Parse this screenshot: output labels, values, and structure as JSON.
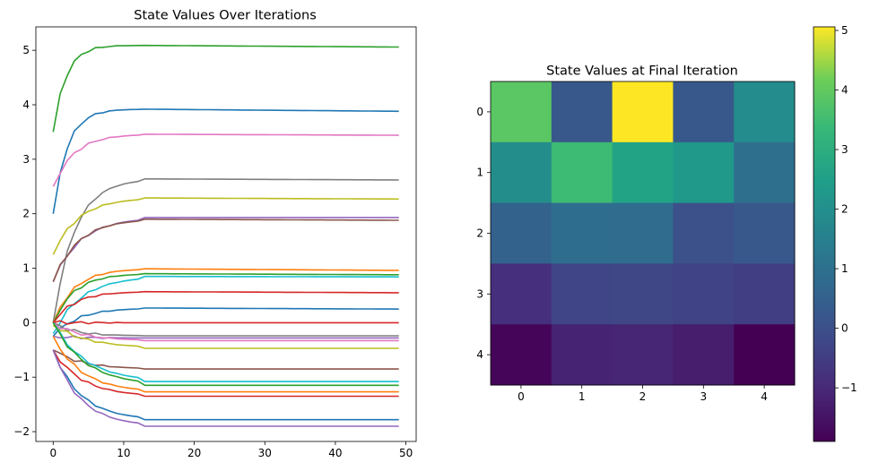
{
  "chart_data": [
    {
      "type": "line",
      "title": "State Values Over Iterations",
      "xlabel": "",
      "ylabel": "",
      "xlim": [
        -2.45,
        51.45
      ],
      "ylim": [
        -2.18,
        5.43
      ],
      "xticks": [
        0,
        10,
        20,
        30,
        40,
        50
      ],
      "yticks": [
        -2,
        -1,
        0,
        1,
        2,
        3,
        4,
        5
      ],
      "iterations": 50,
      "series": [
        {
          "color": "#2ca02c",
          "start": 3.5,
          "final": 5.06,
          "peak": 5.09,
          "tau": 1.8
        },
        {
          "color": "#1f77b4",
          "start": 2.0,
          "final": 3.88,
          "peak": 3.92,
          "tau": 2.0
        },
        {
          "color": "#e377c2",
          "start": 2.5,
          "final": 3.44,
          "peak": 3.46,
          "tau": 3.0
        },
        {
          "color": "#7f7f7f",
          "start": 0.0,
          "final": 2.62,
          "peak": 2.64,
          "tau": 3.0
        },
        {
          "color": "#bcbd22",
          "start": 1.25,
          "final": 2.27,
          "peak": 2.29,
          "tau": 3.5
        },
        {
          "color": "#9467bd",
          "start": 0.75,
          "final": 1.93,
          "peak": 1.93,
          "tau": 3.8
        },
        {
          "color": "#8c564b",
          "start": 0.75,
          "final": 1.88,
          "peak": 1.9,
          "tau": 3.5
        },
        {
          "color": "#ff7f0e",
          "start": 0.0,
          "final": 0.96,
          "peak": 0.99,
          "tau": 3.0
        },
        {
          "color": "#2ca02c",
          "start": 0.0,
          "final": 0.88,
          "peak": 0.9,
          "tau": 3.0
        },
        {
          "color": "#17becf",
          "start": -0.2,
          "final": 0.84,
          "peak": 0.85,
          "tau": 4.0
        },
        {
          "color": "#d62728",
          "start": 0.0,
          "final": 0.55,
          "peak": 0.57,
          "tau": 3.0
        },
        {
          "color": "#1f77b4",
          "start": -0.25,
          "final": 0.25,
          "peak": 0.27,
          "tau": 3.5
        },
        {
          "color": "#d62728",
          "start": 0.0,
          "final": 0.0,
          "peak": 0.0,
          "tau": 2.0
        },
        {
          "color": "#7f7f7f",
          "start": 0.0,
          "final": -0.24,
          "peak": -0.24,
          "tau": 3.0
        },
        {
          "color": "#9467bd",
          "start": -0.25,
          "final": -0.28,
          "peak": -0.28,
          "tau": 3.0
        },
        {
          "color": "#e377c2",
          "start": 0.0,
          "final": -0.33,
          "peak": -0.33,
          "tau": 4.0
        },
        {
          "color": "#bcbd22",
          "start": -0.05,
          "final": -0.47,
          "peak": -0.47,
          "tau": 5.0
        },
        {
          "color": "#8c564b",
          "start": -0.5,
          "final": -0.85,
          "peak": -0.85,
          "tau": 4.0
        },
        {
          "color": "#17becf",
          "start": 0.0,
          "final": -1.08,
          "peak": -1.08,
          "tau": 4.5
        },
        {
          "color": "#2ca02c",
          "start": 0.0,
          "final": -1.15,
          "peak": -1.15,
          "tau": 4.5
        },
        {
          "color": "#ff7f0e",
          "start": -0.25,
          "final": -1.27,
          "peak": -1.27,
          "tau": 4.0
        },
        {
          "color": "#d62728",
          "start": -0.5,
          "final": -1.35,
          "peak": -1.35,
          "tau": 4.0
        },
        {
          "color": "#1f77b4",
          "start": -0.5,
          "final": -1.78,
          "peak": -1.78,
          "tau": 3.8
        },
        {
          "color": "#9467bd",
          "start": -0.5,
          "final": -1.9,
          "peak": -1.9,
          "tau": 3.8
        }
      ]
    },
    {
      "type": "heatmap",
      "title": "State Values at Final Iteration",
      "colormap": "viridis",
      "xticks": [
        0,
        1,
        2,
        3,
        4
      ],
      "yticks": [
        0,
        1,
        2,
        3,
        4
      ],
      "values": [
        [
          3.88,
          0.25,
          5.06,
          0.25,
          1.88
        ],
        [
          1.93,
          3.44,
          2.62,
          2.27,
          0.96
        ],
        [
          0.55,
          0.88,
          0.84,
          0.0,
          0.25
        ],
        [
          -0.85,
          -0.28,
          -0.24,
          -0.33,
          -0.47
        ],
        [
          -1.78,
          -1.15,
          -1.08,
          -1.27,
          -1.9
        ]
      ],
      "vmin": -1.9,
      "vmax": 5.06,
      "colorbar_ticks": [
        -1,
        0,
        1,
        2,
        3,
        4,
        5
      ]
    }
  ]
}
